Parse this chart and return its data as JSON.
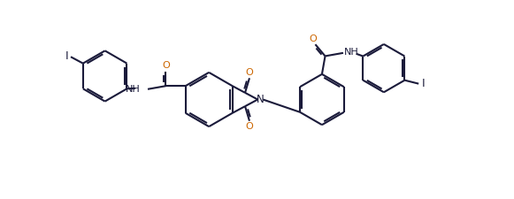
{
  "bg_color": "#ffffff",
  "line_color": "#1a1a3a",
  "o_color": "#cc6600",
  "lw": 1.5,
  "fig_width": 5.81,
  "fig_height": 2.25,
  "dpi": 100,
  "xlim": [
    0,
    11
  ],
  "ylim": [
    0,
    4.5
  ]
}
